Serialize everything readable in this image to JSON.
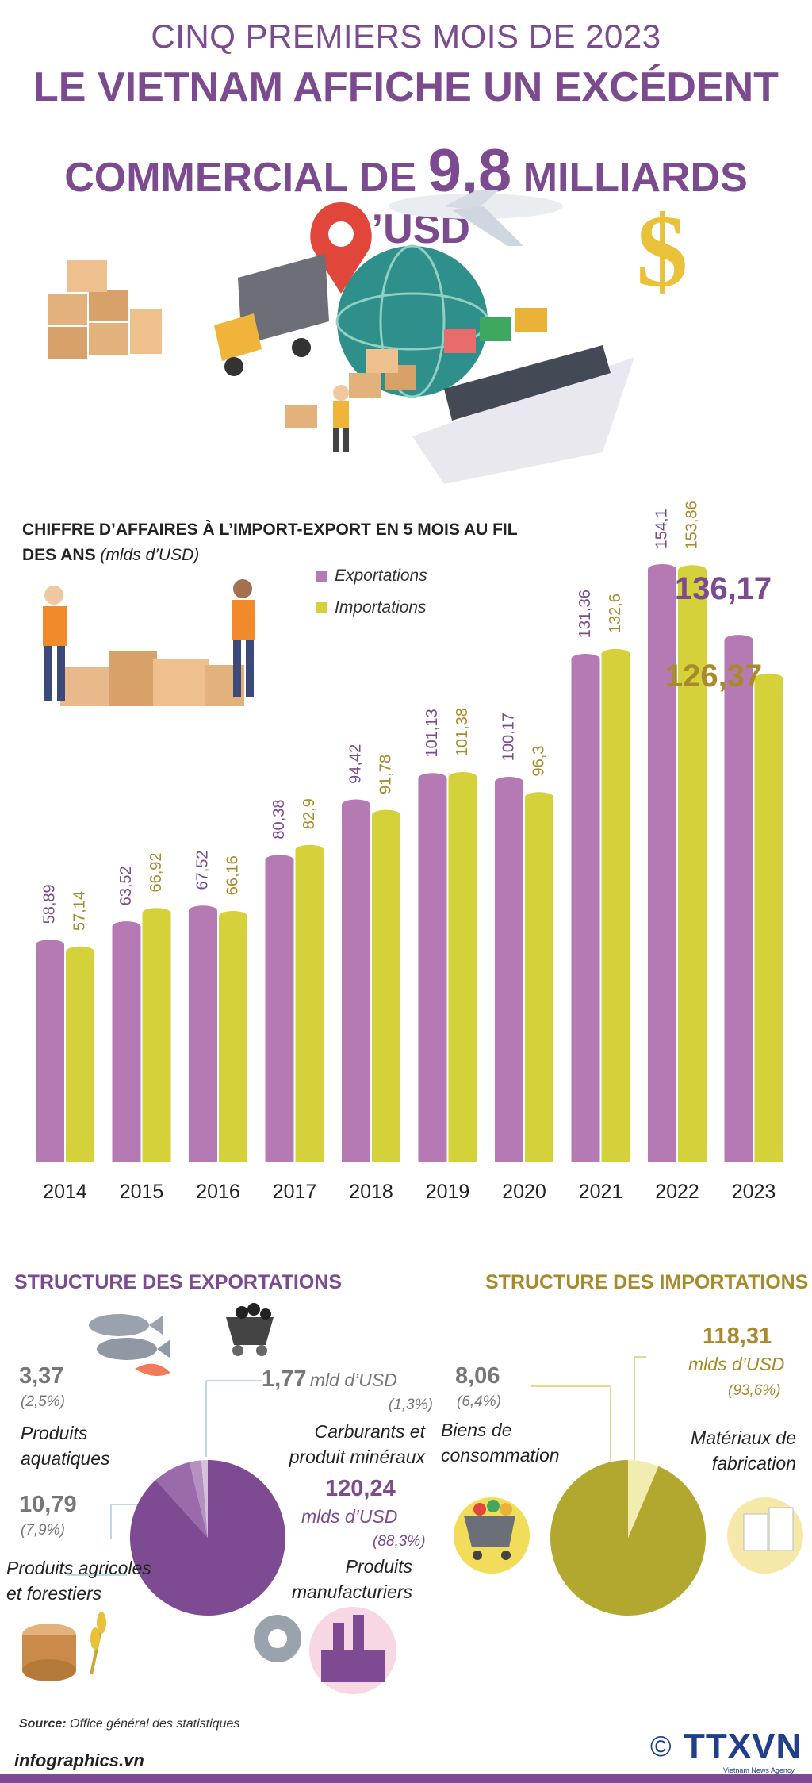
{
  "header": {
    "line1": "CINQ PREMIERS MOIS DE 2023",
    "line2": "LE VIETNAM AFFICHE UN EXCÉDENT",
    "line3_before": "COMMERCIAL DE",
    "line3_value": "9,8",
    "line3_after": "MILLIARDS D’USD"
  },
  "colors": {
    "exports": "#b57ab4",
    "imports": "#d4d13a",
    "purple_text": "#7b4a8f",
    "gold_text": "#a98a2a",
    "pie_exports": "#7e4a92",
    "pie_imports": "#b2a830"
  },
  "chart_data": {
    "type": "bar",
    "title": "CHIFFRE D’AFFAIRES À L’IMPORT-EXPORT EN 5 MOIS AU FIL DES ANS",
    "unit": "(mlds d’USD)",
    "categories": [
      "2014",
      "2015",
      "2016",
      "2017",
      "2018",
      "2019",
      "2020",
      "2021",
      "2022",
      "2023"
    ],
    "series": [
      {
        "name": "Exportations",
        "values": [
          58.89,
          63.52,
          67.52,
          80.38,
          94.42,
          101.13,
          100.17,
          131.36,
          154.1,
          136.17
        ],
        "labels": [
          "58,89",
          "63,52",
          "67,52",
          "80,38",
          "94,42",
          "101,13",
          "100,17",
          "131,36",
          "154,1",
          "136,17"
        ]
      },
      {
        "name": "Importations",
        "values": [
          57.14,
          66.92,
          66.16,
          82.9,
          91.78,
          101.38,
          96.3,
          132.6,
          153.86,
          126.37
        ],
        "labels": [
          "57,14",
          "66,92",
          "66,16",
          "82,9",
          "91,78",
          "101,38",
          "96,3",
          "132,6",
          "153,86",
          "126,37"
        ]
      }
    ],
    "ylim": [
      0,
      160
    ]
  },
  "exports_structure": {
    "title": "STRUCTURE DES EXPORTATIONS",
    "slices": [
      {
        "name": "Produits manufacturiers",
        "value": "120,24",
        "unit": "mlds d’USD",
        "pct": "(88,3%)",
        "share": 88.3
      },
      {
        "name": "Produits agricoles et forestiers",
        "value": "10,79",
        "pct": "(7,9%)",
        "share": 7.9
      },
      {
        "name": "Produits aquatiques",
        "value": "3,37",
        "pct": "(2,5%)",
        "share": 2.5
      },
      {
        "name": "Carburants et produit minéraux",
        "value": "1,77",
        "unit": "mld d’USD",
        "pct": "(1,3%)",
        "share": 1.3
      }
    ],
    "labels": {
      "aquatic_l1": "Produits",
      "aquatic_l2": "aquatiques",
      "agri_l1": "Produits agricoles",
      "agri_l2": "et forestiers",
      "fuel_l1": "Carburants et",
      "fuel_l2": "produit minéraux",
      "manuf_l1": "Produits",
      "manuf_l2": "manufacturiers"
    }
  },
  "imports_structure": {
    "title": "STRUCTURE DES IMPORTATIONS",
    "slices": [
      {
        "name": "Matériaux de fabrication",
        "value": "118,31",
        "unit": "mlds d’USD",
        "pct": "(93,6%)",
        "share": 93.6
      },
      {
        "name": "Biens de consommation",
        "value": "8,06",
        "pct": "(6,4%)",
        "share": 6.4
      }
    ],
    "labels": {
      "cons_l1": "Biens de",
      "cons_l2": "consommation",
      "mat_l1": "Matériaux de",
      "mat_l2": "fabrication"
    }
  },
  "footer": {
    "source_label": "Source:",
    "source_text": "Office général des statistiques",
    "site": "infographics.vn",
    "copyright": "©",
    "logo": "TTXVN",
    "logo_sub": "Vietnam News Agency"
  },
  "icons": [
    "map-pin-icon",
    "airplane-icon",
    "globe-icon",
    "dollar-icon",
    "truck-icon",
    "ship-icon",
    "boxes-icon",
    "workers-icon",
    "fish-icon",
    "coal-cart-icon",
    "log-icon",
    "wheat-icon",
    "gear-icon",
    "factory-icon",
    "shopping-cart-icon",
    "paper-rolls-icon"
  ]
}
